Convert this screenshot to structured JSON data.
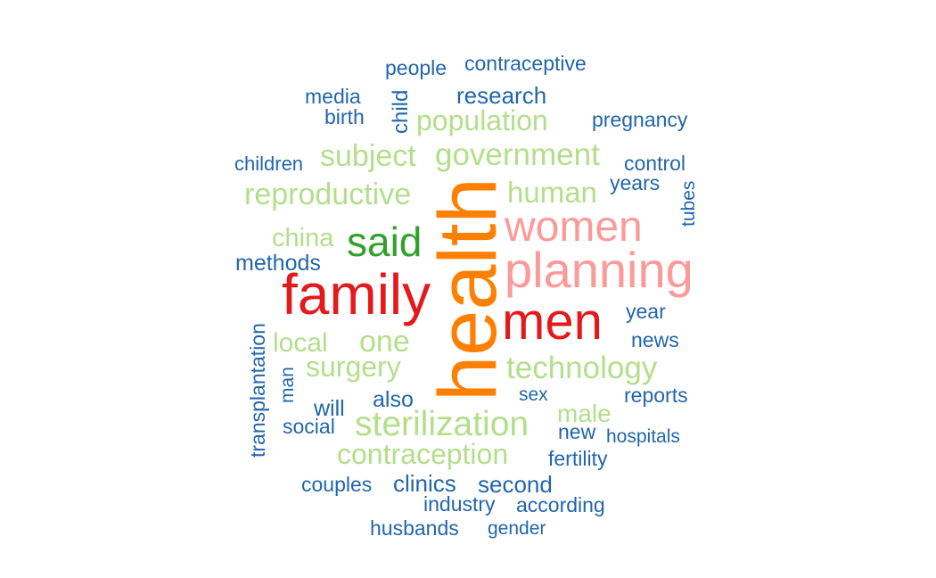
{
  "palette": {
    "dark_blue": "#2166ac",
    "light_green": "#b2df8a",
    "dark_green": "#33a02c",
    "pink": "#fb9a99",
    "red": "#e31a1c",
    "orange": "#ff7f00"
  },
  "words": [
    {
      "text": "health",
      "color": "orange",
      "vertical": true
    },
    {
      "text": "family",
      "color": "red"
    },
    {
      "text": "men",
      "color": "red"
    },
    {
      "text": "planning",
      "color": "pink"
    },
    {
      "text": "women",
      "color": "pink"
    },
    {
      "text": "said",
      "color": "dark_green"
    },
    {
      "text": "sterilization",
      "color": "light_green"
    },
    {
      "text": "reproductive",
      "color": "light_green"
    },
    {
      "text": "government",
      "color": "light_green"
    },
    {
      "text": "population",
      "color": "light_green"
    },
    {
      "text": "technology",
      "color": "light_green"
    },
    {
      "text": "contraception",
      "color": "light_green"
    },
    {
      "text": "subject",
      "color": "light_green"
    },
    {
      "text": "human",
      "color": "light_green"
    },
    {
      "text": "surgery",
      "color": "light_green"
    },
    {
      "text": "china",
      "color": "light_green"
    },
    {
      "text": "one",
      "color": "light_green"
    },
    {
      "text": "local",
      "color": "light_green"
    },
    {
      "text": "male",
      "color": "light_green"
    },
    {
      "text": "research",
      "color": "dark_blue"
    },
    {
      "text": "clinics",
      "color": "dark_blue"
    },
    {
      "text": "second",
      "color": "dark_blue"
    },
    {
      "text": "methods",
      "color": "dark_blue"
    },
    {
      "text": "also",
      "color": "dark_blue"
    },
    {
      "text": "will",
      "color": "dark_blue"
    },
    {
      "text": "contraceptive",
      "color": "dark_blue"
    },
    {
      "text": "people",
      "color": "dark_blue"
    },
    {
      "text": "pregnancy",
      "color": "dark_blue"
    },
    {
      "text": "media",
      "color": "dark_blue"
    },
    {
      "text": "birth",
      "color": "dark_blue"
    },
    {
      "text": "child",
      "color": "dark_blue",
      "vertical": true
    },
    {
      "text": "children",
      "color": "dark_blue"
    },
    {
      "text": "control",
      "color": "dark_blue"
    },
    {
      "text": "years",
      "color": "dark_blue"
    },
    {
      "text": "tubes",
      "color": "dark_blue",
      "vertical": true
    },
    {
      "text": "year",
      "color": "dark_blue"
    },
    {
      "text": "news",
      "color": "dark_blue"
    },
    {
      "text": "transplantation",
      "color": "dark_blue",
      "vertical": true
    },
    {
      "text": "man",
      "color": "dark_blue",
      "vertical": true
    },
    {
      "text": "reports",
      "color": "dark_blue"
    },
    {
      "text": "sex",
      "color": "dark_blue"
    },
    {
      "text": "social",
      "color": "dark_blue"
    },
    {
      "text": "new",
      "color": "dark_blue"
    },
    {
      "text": "hospitals",
      "color": "dark_blue"
    },
    {
      "text": "fertility",
      "color": "dark_blue"
    },
    {
      "text": "couples",
      "color": "dark_blue"
    },
    {
      "text": "industry",
      "color": "dark_blue"
    },
    {
      "text": "according",
      "color": "dark_blue"
    },
    {
      "text": "husbands",
      "color": "dark_blue"
    },
    {
      "text": "gender",
      "color": "dark_blue"
    }
  ]
}
